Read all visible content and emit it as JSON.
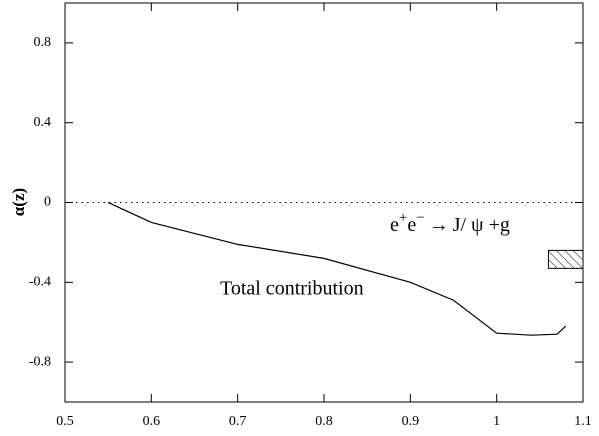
{
  "chart_data": {
    "type": "line",
    "ylabel": "α(z)",
    "x": [
      0.55,
      0.6,
      0.7,
      0.8,
      0.9,
      0.95,
      1.0,
      1.04,
      1.07,
      1.08
    ],
    "series": [
      {
        "name": "Total contribution",
        "color": "#000000",
        "values": [
          0,
          -0.1,
          -0.21,
          -0.28,
          -0.4,
          -0.49,
          -0.655,
          -0.665,
          -0.66,
          -0.62
        ]
      }
    ],
    "reference_line": 0,
    "band": {
      "x": [
        1.06,
        1.1
      ],
      "y": [
        -0.33,
        -0.24
      ]
    },
    "annotation": [
      "e",
      "+",
      "e",
      "−",
      "→",
      "J/ ψ +g"
    ],
    "xlim": [
      0.5,
      1.1
    ],
    "xticks": [
      0.5,
      0.6,
      0.7,
      0.8,
      0.9,
      1,
      1.1
    ],
    "ylim": [
      -1,
      1
    ],
    "yticks": [
      0.8,
      0.4,
      0,
      -0.4,
      -0.8
    ]
  }
}
